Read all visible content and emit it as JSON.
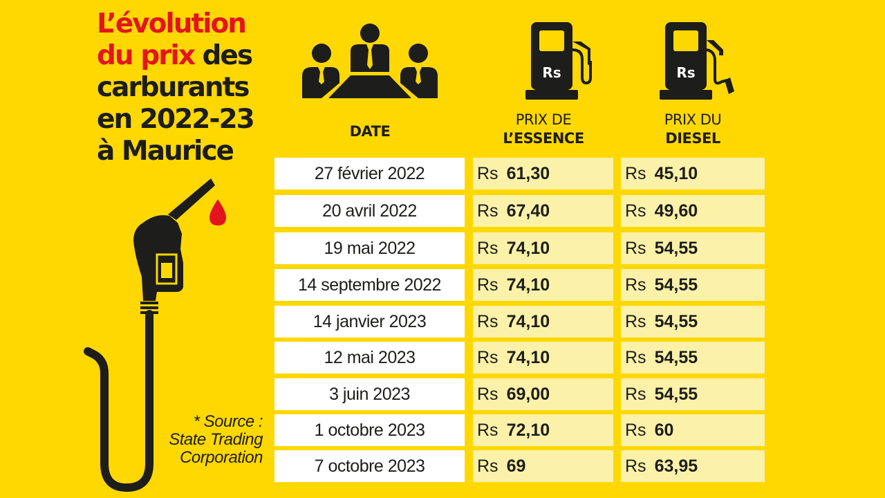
{
  "title": {
    "line1": "L’évolution",
    "line2_red": "du prix",
    "line2_rest": " des",
    "line3": "carburants",
    "line4": "en 2022-23",
    "line5": "à Maurice"
  },
  "headers": {
    "date": "DATE",
    "essence_line1": "PRIX DE",
    "essence_line2": "L’ESSENCE",
    "diesel_line1": "PRIX DU",
    "diesel_line2": "DIESEL"
  },
  "pump_label": "Rs",
  "currency": "Rs",
  "rows": [
    {
      "date": "27 février 2022",
      "essence": "61,30",
      "diesel": "45,10"
    },
    {
      "date": "20 avril 2022",
      "essence": "67,40",
      "diesel": "49,60"
    },
    {
      "date": "19 mai 2022",
      "essence": "74,10",
      "diesel": "54,55"
    },
    {
      "date": "14 septembre 2022",
      "essence": "74,10",
      "diesel": "54,55"
    },
    {
      "date": "14 janvier 2023",
      "essence": "74,10",
      "diesel": "54,55"
    },
    {
      "date": "12 mai 2023",
      "essence": "74,10",
      "diesel": "54,55"
    },
    {
      "date": "3 juin 2023",
      "essence": "69,00",
      "diesel": "54,55"
    },
    {
      "date": "1 octobre 2023",
      "essence": "72,10",
      "diesel": "60"
    },
    {
      "date": "7 octobre 2023",
      "essence": "69",
      "diesel": "63,95"
    }
  ],
  "source": {
    "line1": "* Source :",
    "line2": "State Trading",
    "line3": "Corporation"
  },
  "colors": {
    "background": "#FFD802",
    "accent_red": "#E3141D",
    "text": "#1d1d1b",
    "date_cell": "#ffffff",
    "price_cell": "#FBF1A8"
  }
}
